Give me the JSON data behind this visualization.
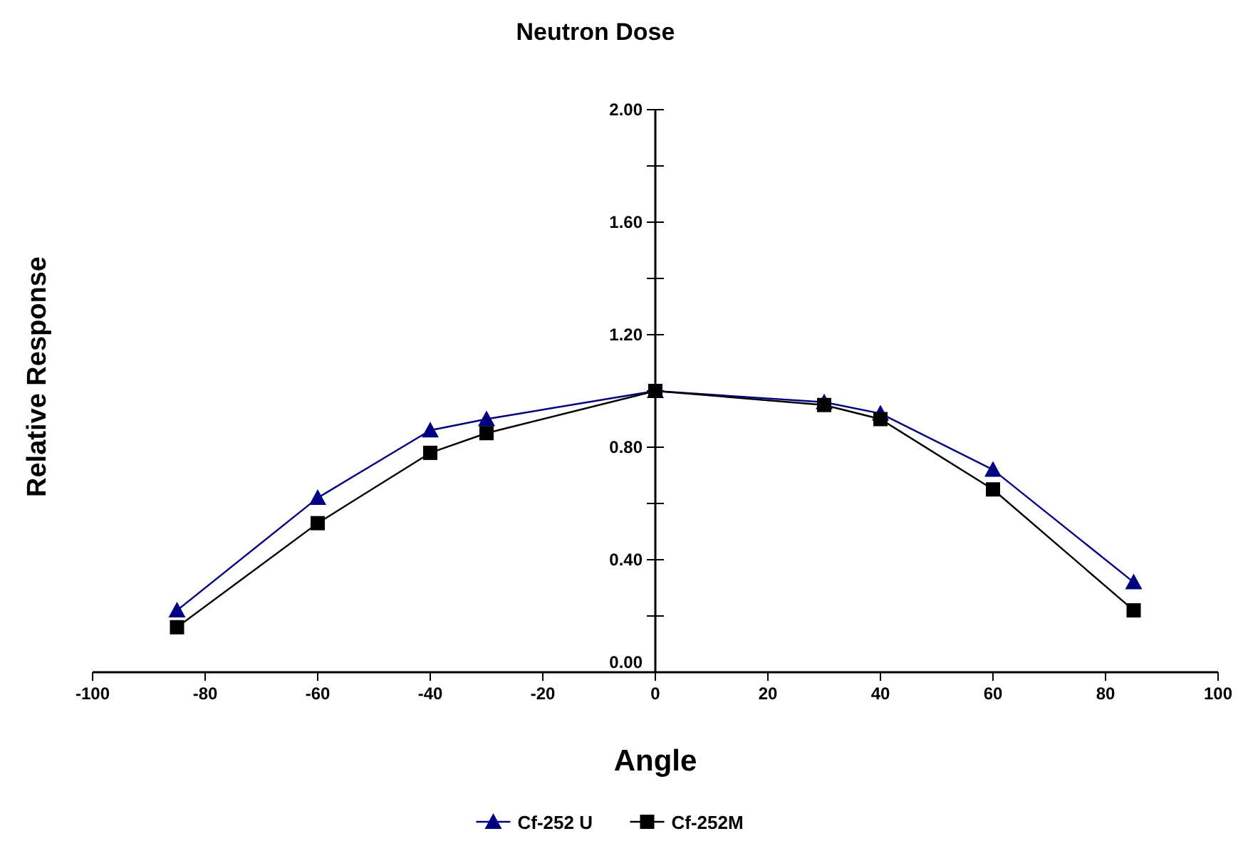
{
  "chart_data": {
    "type": "line",
    "title": "Neutron Dose",
    "xlabel": "Angle",
    "ylabel": "Relative Response",
    "x": [
      -85,
      -60,
      -40,
      -30,
      0,
      30,
      40,
      60,
      85
    ],
    "series": [
      {
        "name": "Cf-252 U",
        "color": "#000080",
        "marker": "triangle",
        "values": [
          0.22,
          0.62,
          0.86,
          0.9,
          1.0,
          0.96,
          0.92,
          0.72,
          0.32
        ]
      },
      {
        "name": "Cf-252M",
        "color": "#000000",
        "marker": "square",
        "values": [
          0.16,
          0.53,
          0.78,
          0.85,
          1.0,
          0.95,
          0.9,
          0.65,
          0.22
        ]
      }
    ],
    "xlim": [
      -100,
      100
    ],
    "xticks": [
      -100,
      -80,
      -60,
      -40,
      -20,
      0,
      20,
      40,
      60,
      80,
      100
    ],
    "ylim": [
      0,
      2
    ],
    "yticks": [
      {
        "value": 0,
        "label": "0.00"
      },
      {
        "value": 0.2,
        "label": null
      },
      {
        "value": 0.4,
        "label": "0.40"
      },
      {
        "value": 0.6,
        "label": null
      },
      {
        "value": 0.8,
        "label": "0.80"
      },
      {
        "value": 1.0,
        "label": null
      },
      {
        "value": 1.2,
        "label": "1.20"
      },
      {
        "value": 1.4,
        "label": null
      },
      {
        "value": 1.6,
        "label": "1.60"
      },
      {
        "value": 1.8,
        "label": null
      },
      {
        "value": 2.0,
        "label": "2.00"
      }
    ],
    "grid": false,
    "legend": "bottom",
    "line_style": "solid"
  }
}
